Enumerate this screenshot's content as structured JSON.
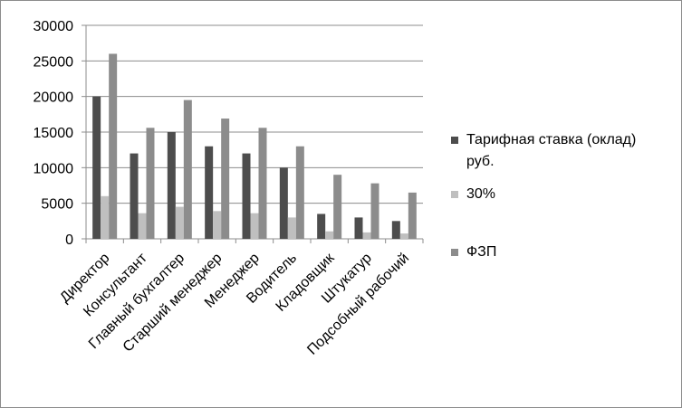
{
  "chart_data": {
    "type": "bar",
    "title": "",
    "xlabel": "",
    "ylabel": "",
    "ylim": [
      0,
      30000
    ],
    "yticks": [
      0,
      5000,
      10000,
      15000,
      20000,
      25000,
      30000
    ],
    "grid": true,
    "legend_position": "right",
    "categories": [
      "Директор",
      "Консультант",
      "Главный бухгалтер",
      "Старший менеджер",
      "Менеджер",
      "Водитель",
      "Кладовщик",
      "Штукатур",
      "Подсобный рабочий"
    ],
    "series": [
      {
        "name": "Тарифная ставка (оклад) руб.",
        "legend_lines": [
          "Тарифная ставка (оклад)",
          "руб."
        ],
        "color": "#4d4d4d",
        "values": [
          20000,
          12000,
          15000,
          13000,
          12000,
          10000,
          3500,
          3000,
          2500
        ]
      },
      {
        "name": "30%",
        "legend_lines": [
          "30%"
        ],
        "color": "#bfbfbf",
        "values": [
          6000,
          3600,
          4500,
          3900,
          3600,
          3000,
          1050,
          900,
          750
        ]
      },
      {
        "name": "ФЗП",
        "legend_lines": [
          "ФЗП"
        ],
        "color": "#8c8c8c",
        "values": [
          26000,
          15600,
          19500,
          16900,
          15600,
          13000,
          9000,
          7800,
          6500
        ]
      }
    ]
  }
}
